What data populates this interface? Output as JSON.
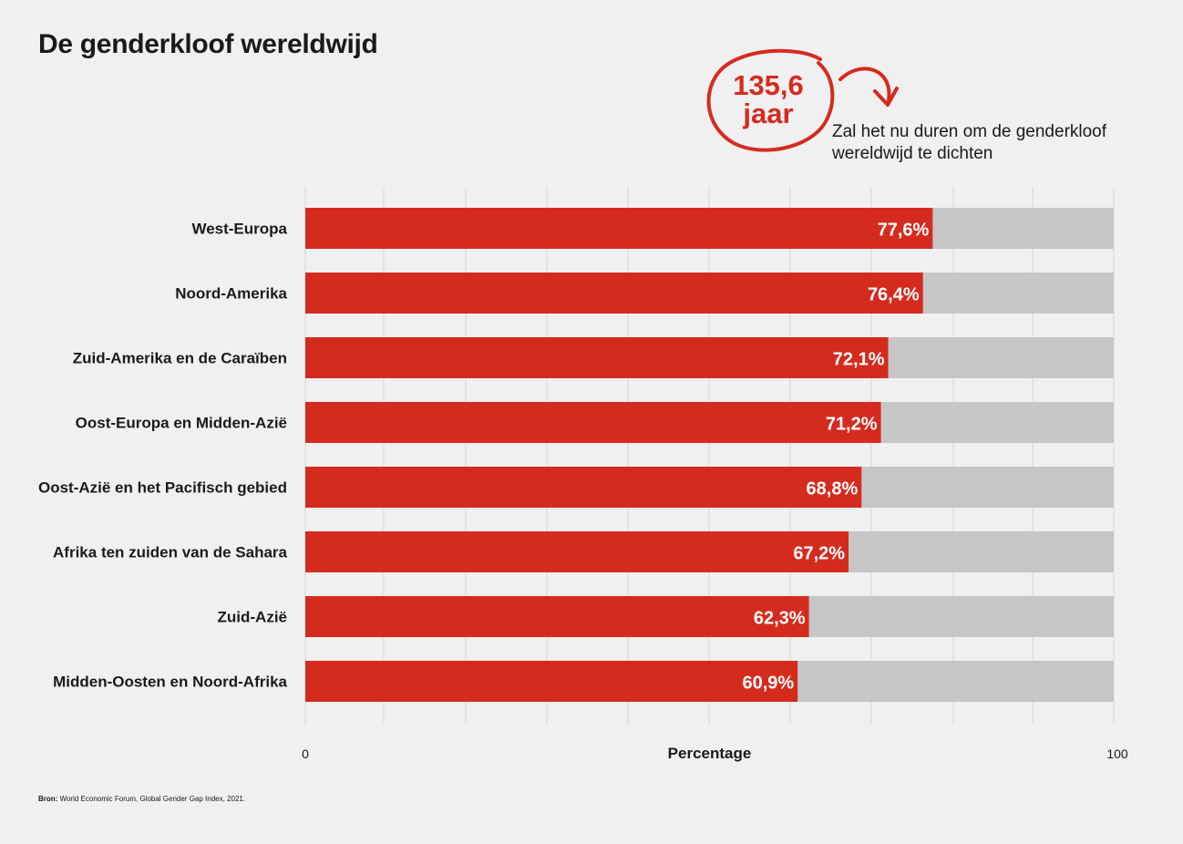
{
  "header": {
    "title": "De genderkloof wereldwijd"
  },
  "callout": {
    "number": "135,6",
    "unit": "jaar",
    "text": "Zal het nu duren om de genderkloof wereldwijd te dichten",
    "color": "#d52b1e"
  },
  "chart_data": {
    "type": "bar",
    "orientation": "horizontal",
    "stacked_remainder": true,
    "title": "De genderkloof wereldwijd",
    "xlabel": "Percentage",
    "xlim": [
      0,
      100
    ],
    "x_ticks": [
      "0",
      "100"
    ],
    "grid": true,
    "categories": [
      "West-Europa",
      "Noord-Amerika",
      "Zuid-Amerika en de Caraïben",
      "Oost-Europa en Midden-Azië",
      "Oost-Azië en het Pacifisch gebied",
      "Afrika ten zuiden van de Sahara",
      "Zuid-Azië",
      "Midden-Oosten en Noord-Afrika"
    ],
    "values": [
      77.6,
      76.4,
      72.1,
      71.2,
      68.8,
      67.2,
      62.3,
      60.9
    ],
    "value_labels": [
      "77,6%",
      "76,4%",
      "72,1%",
      "71,2%",
      "68,8%",
      "67,2%",
      "62,3%",
      "60,9%"
    ],
    "bar_color": "#d52b1e",
    "remainder_color": "#c6c6c6"
  },
  "footer": {
    "source_label": "Bron:",
    "source_text": "World Economic Forum, Global Gender Gap Index, 2021."
  }
}
